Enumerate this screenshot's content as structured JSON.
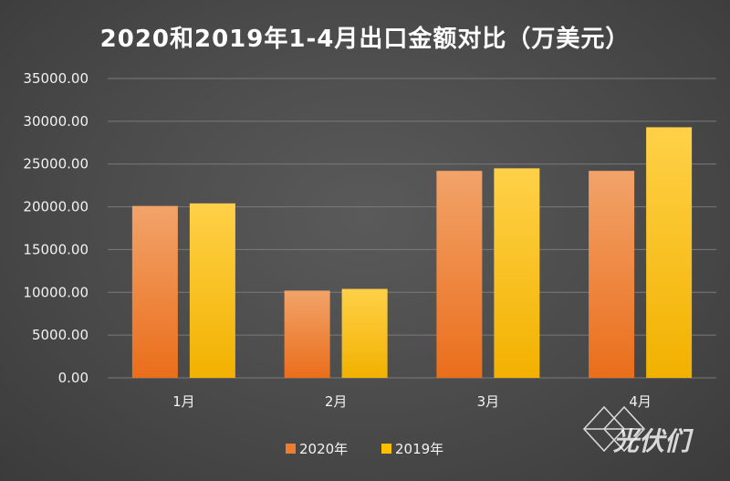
{
  "chart_data": {
    "type": "bar",
    "title": "2020和2019年1-4月出口金额对比（万美元）",
    "categories": [
      "1月",
      "2月",
      "3月",
      "4月"
    ],
    "series": [
      {
        "name": "2020年",
        "color": "#ed7d31",
        "values": [
          20100,
          10200,
          24200,
          24200
        ]
      },
      {
        "name": "2019年",
        "color": "#ffc000",
        "values": [
          20400,
          10400,
          24500,
          29300
        ]
      }
    ],
    "ylim": [
      0,
      35000
    ],
    "yticks": [
      "0.00",
      "5000.00",
      "10000.00",
      "15000.00",
      "20000.00",
      "25000.00",
      "30000.00",
      "35000.00"
    ],
    "grid": true,
    "legend": "bottom"
  },
  "watermark": {
    "text": "光伏们",
    "icon": "diamond-logo-icon"
  }
}
